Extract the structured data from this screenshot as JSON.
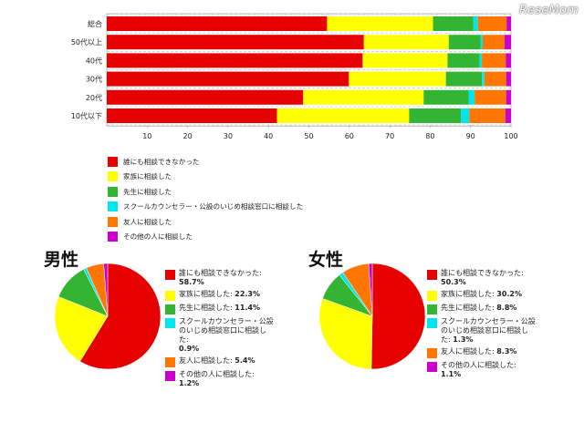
{
  "watermark": "ReseMom",
  "colors": {
    "no_one": "#e60000",
    "family": "#ffff00",
    "teacher": "#33b533",
    "counselor": "#00e5ee",
    "friend": "#ff7700",
    "other": "#cc00cc"
  },
  "chart_data": [
    {
      "type": "bar",
      "orientation": "horizontal-stacked",
      "categories": [
        "総合",
        "50代以上",
        "40代",
        "30代",
        "20代",
        "10代以下"
      ],
      "series": [
        {
          "name": "誰にも相談できなかった",
          "color": "#e60000",
          "values": [
            54.5,
            63.6,
            63.3,
            59.9,
            48.6,
            42.1
          ]
        },
        {
          "name": "家族に相談した",
          "color": "#ffff00",
          "values": [
            26.2,
            21.0,
            21.0,
            24.0,
            29.8,
            32.7
          ]
        },
        {
          "name": "先生に相談した",
          "color": "#33b533",
          "values": [
            10.0,
            7.9,
            7.9,
            8.9,
            11.1,
            12.8
          ]
        },
        {
          "name": "スクールカウンセラー・公設のいじめ相談窓口に相談した",
          "color": "#00e5ee",
          "values": [
            1.1,
            0.5,
            0.6,
            0.6,
            1.5,
            2.1
          ]
        },
        {
          "name": "友人に相談した",
          "color": "#ff7700",
          "values": [
            7.1,
            5.4,
            5.9,
            5.4,
            7.8,
            8.9
          ]
        },
        {
          "name": "その他の人に相談した",
          "color": "#cc00cc",
          "values": [
            1.1,
            1.6,
            1.3,
            1.2,
            1.2,
            1.4
          ]
        }
      ],
      "xlim": [
        0,
        100
      ],
      "xticks": [
        10,
        20,
        30,
        40,
        50,
        60,
        70,
        80,
        90,
        100
      ],
      "legend": "bottom"
    },
    {
      "type": "pie",
      "title": "男性",
      "labels": [
        "誰にも相談できなかった",
        "家族に相談した",
        "先生に相談した",
        "スクールカウンセラー・公設のいじめ相談窓口に相談した",
        "友人に相談した",
        "その他の人に相談した"
      ],
      "values": [
        58.7,
        22.3,
        11.4,
        0.9,
        5.4,
        1.2
      ],
      "value_labels": [
        "58.7%",
        "22.3%",
        "11.4%",
        "0.9%",
        "5.4%",
        "1.2%"
      ],
      "colors": [
        "#e60000",
        "#ffff00",
        "#33b533",
        "#00e5ee",
        "#ff7700",
        "#cc00cc"
      ],
      "legend": "right"
    },
    {
      "type": "pie",
      "title": "女性",
      "labels": [
        "誰にも相談できなかった",
        "家族に相談した",
        "先生に相談した",
        "スクールカウンセラー・公設のいじめ相談窓口に相談した",
        "友人に相談した",
        "その他の人に相談した"
      ],
      "values": [
        50.3,
        30.2,
        8.8,
        1.3,
        8.3,
        1.1
      ],
      "value_labels": [
        "50.3%",
        "30.2%",
        "8.8%",
        "1.3%",
        "8.3%",
        "1.1%"
      ],
      "colors": [
        "#e60000",
        "#ffff00",
        "#33b533",
        "#00e5ee",
        "#ff7700",
        "#cc00cc"
      ],
      "legend": "right"
    }
  ],
  "legend_items": [
    {
      "label": "誰にも相談できなかった",
      "color": "#e60000"
    },
    {
      "label": "家族に相談した",
      "color": "#ffff00"
    },
    {
      "label": "先生に相談した",
      "color": "#33b533"
    },
    {
      "label": "スクールカウンセラー・公設のいじめ相談窓口に相談した",
      "color": "#00e5ee"
    },
    {
      "label": "友人に相談した",
      "color": "#ff7700"
    },
    {
      "label": "その他の人に相談した",
      "color": "#cc00cc"
    }
  ],
  "male_legend": [
    {
      "lines": [
        "誰にも相談できなかった:"
      ],
      "pct": "58.7%"
    },
    {
      "lines": [
        "家族に相談した:"
      ],
      "pct": "22.3%",
      "inline": true
    },
    {
      "lines": [
        "先生に相談した:"
      ],
      "pct": "11.4%",
      "inline": true
    },
    {
      "lines": [
        "スクールカウンセラー・公設",
        "のいじめ相談窓口に相談し",
        "た:"
      ],
      "pct": "0.9%"
    },
    {
      "lines": [
        "友人に相談した:"
      ],
      "pct": "5.4%",
      "inline": true
    },
    {
      "lines": [
        "その他の人に相談した:"
      ],
      "pct": "1.2%"
    }
  ],
  "female_legend": [
    {
      "lines": [
        "誰にも相談できなかった:"
      ],
      "pct": "50.3%"
    },
    {
      "lines": [
        "家族に相談した:"
      ],
      "pct": "30.2%",
      "inline": true
    },
    {
      "lines": [
        "先生に相談した:"
      ],
      "pct": "8.8%",
      "inline": true
    },
    {
      "lines": [
        "スクールカウンセラー・公設",
        "のいじめ相談窓口に相談し",
        "た:"
      ],
      "pct": "1.3%",
      "inline": true
    },
    {
      "lines": [
        "友人に相談した:"
      ],
      "pct": "8.3%",
      "inline": true
    },
    {
      "lines": [
        "その他の人に相談した:"
      ],
      "pct": "1.1%"
    }
  ]
}
